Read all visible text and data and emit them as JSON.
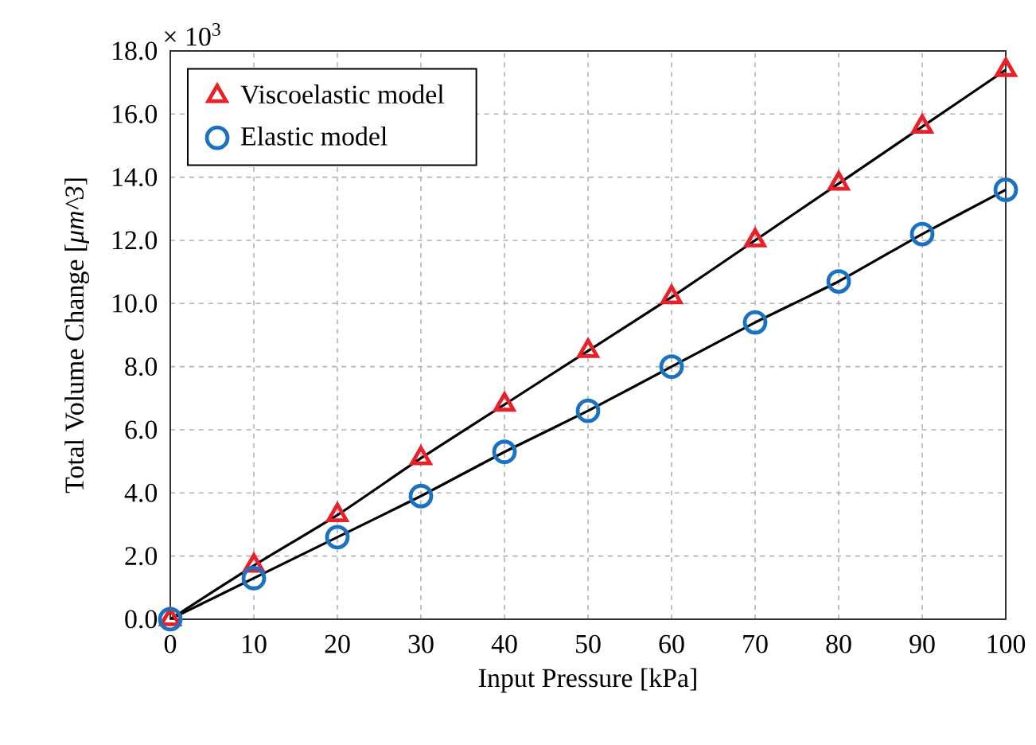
{
  "chart_data": {
    "type": "scatter",
    "xlabel": "Input Pressure [kPa]",
    "ylabel": "Total Volume Change [*μm^3*]",
    "annotations": [
      "× 10$^{3}$"
    ],
    "x": [
      0,
      10,
      20,
      30,
      40,
      50,
      60,
      70,
      80,
      90,
      100
    ],
    "series": [
      {
        "name": "Viscoelastic model",
        "color": "#e8202a",
        "marker": "triangle",
        "values": [
          0,
          1.7,
          3.3,
          5.1,
          6.8,
          8.5,
          10.2,
          12.0,
          13.8,
          15.6,
          17.4
        ]
      },
      {
        "name": "Elastic model",
        "color": "#1a72c0",
        "marker": "circle",
        "values": [
          0,
          1.3,
          2.6,
          3.9,
          5.3,
          6.6,
          8.0,
          9.4,
          10.7,
          12.2,
          13.6
        ]
      },
      {
        "type": "line",
        "color": "#000000",
        "marker": "none",
        "values": [
          0,
          1.7,
          3.3,
          5.1,
          6.8,
          8.5,
          10.2,
          12.0,
          13.8,
          15.6,
          17.4
        ]
      },
      {
        "type": "line",
        "color": "#000000",
        "marker": "none",
        "values": [
          0,
          1.3,
          2.6,
          3.9,
          5.3,
          6.6,
          8.0,
          9.4,
          10.7,
          12.2,
          13.6
        ]
      }
    ],
    "xlim": [
      0,
      100
    ],
    "xticks": [
      0,
      10,
      20,
      30,
      40,
      50,
      60,
      70,
      80,
      90,
      100
    ],
    "ylim": [
      0,
      18
    ],
    "yticks": [
      {
        "value": 0,
        "label": "0.0"
      },
      {
        "value": 2,
        "label": "2.0"
      },
      {
        "value": 4,
        "label": "4.0"
      },
      {
        "value": 6,
        "label": "6.0"
      },
      {
        "value": 8,
        "label": "8.0"
      },
      {
        "value": 10,
        "label": "10.0"
      },
      {
        "value": 12,
        "label": "12.0"
      },
      {
        "value": 14,
        "label": "14.0"
      },
      {
        "value": 16,
        "label": "16.0"
      },
      {
        "value": 18,
        "label": "18.0"
      }
    ],
    "grid": true,
    "legend": "top left"
  }
}
